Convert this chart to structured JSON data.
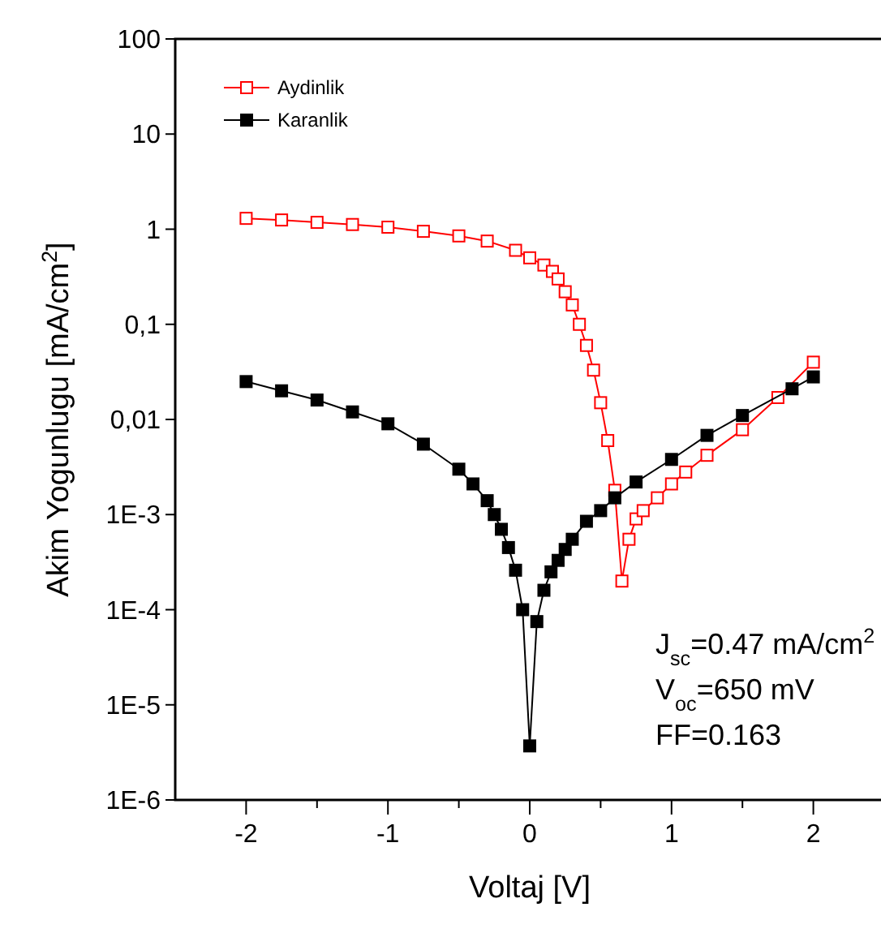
{
  "chart_data": {
    "type": "line",
    "xlabel": "Voltaj [V]",
    "ylabel": "Akim Yogunlugu [mA/cm$^{2}$]",
    "log": "y",
    "xlim": [
      -2.5,
      2.5
    ],
    "ylim": [
      1e-06,
      100
    ],
    "xticks": [
      -2,
      {
        "value": -1.5,
        "label": null
      },
      -1,
      {
        "value": -0.5,
        "label": null
      },
      0,
      {
        "value": 0.5,
        "label": null
      },
      1,
      {
        "value": 1.5,
        "label": null
      },
      2
    ],
    "yticks": [
      {
        "value": 1e-06,
        "label": "1E-6"
      },
      {
        "value": 1e-05,
        "label": "1E-5"
      },
      {
        "value": 0.0001,
        "label": "1E-4"
      },
      {
        "value": 0.001,
        "label": "1E-3"
      },
      {
        "value": 0.01,
        "label": "0,01"
      },
      {
        "value": 0.1,
        "label": "0,1"
      },
      1,
      10,
      100
    ],
    "legend": "top left",
    "marker": "square",
    "line_style": "solid",
    "grid": false,
    "annotations": [
      "J$_{sc}$=0.47 mA/cm$^{2}$",
      "V$_{oc}$=650 mV",
      "FF=0.163"
    ],
    "series": [
      {
        "name": "Aydinlik",
        "color": "#ff0000",
        "x": [
          -2,
          -1.75,
          -1.5,
          -1.25,
          -1,
          -0.75,
          -0.5,
          -0.3,
          -0.1,
          0,
          0.1,
          0.16,
          0.2,
          0.25,
          0.3,
          0.35,
          0.4,
          0.45,
          0.5,
          0.55,
          0.6,
          0.65,
          0.7,
          0.75,
          0.8,
          0.9,
          1,
          1.1,
          1.25,
          1.5,
          1.75,
          2
        ],
        "values": [
          1.3,
          1.25,
          1.18,
          1.12,
          1.05,
          0.95,
          0.85,
          0.75,
          0.6,
          0.5,
          0.42,
          0.36,
          0.3,
          0.22,
          0.16,
          0.1,
          0.06,
          0.033,
          0.015,
          0.006,
          0.0018,
          0.0002,
          0.00055,
          0.0009,
          0.0011,
          0.0015,
          0.0021,
          0.0028,
          0.0042,
          0.0078,
          0.017,
          0.04
        ]
      },
      {
        "name": "Karanlik",
        "color": "#000000",
        "x": [
          -2,
          -1.75,
          -1.5,
          -1.25,
          -1,
          -0.75,
          -0.5,
          -0.4,
          -0.3,
          -0.25,
          -0.2,
          -0.15,
          -0.1,
          -0.05,
          0,
          0.05,
          0.1,
          0.15,
          0.2,
          0.25,
          0.3,
          0.4,
          0.5,
          0.6,
          0.75,
          1,
          1.25,
          1.5,
          1.85,
          2
        ],
        "values": [
          0.025,
          0.02,
          0.016,
          0.012,
          0.009,
          0.0055,
          0.003,
          0.0021,
          0.0014,
          0.001,
          0.0007,
          0.00045,
          0.00026,
          0.0001,
          3.7e-06,
          7.5e-05,
          0.00016,
          0.00025,
          0.00033,
          0.00043,
          0.00055,
          0.00085,
          0.0011,
          0.0015,
          0.0022,
          0.0038,
          0.0068,
          0.011,
          0.021,
          0.028
        ]
      }
    ]
  }
}
